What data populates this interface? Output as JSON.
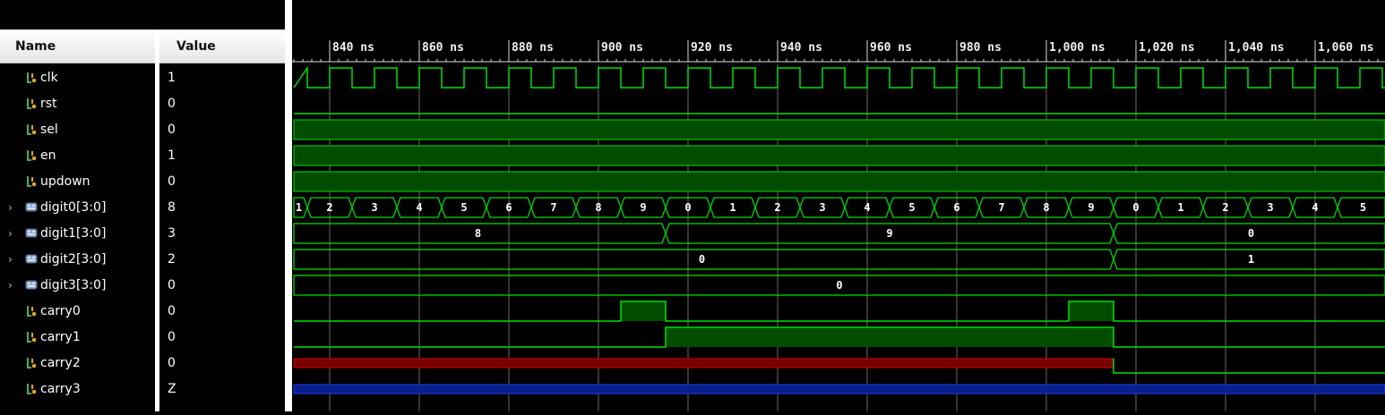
{
  "columns": {
    "name": "Name",
    "value": "Value"
  },
  "signals": [
    {
      "name": "clk",
      "value": "1",
      "type": "bit",
      "expandable": false
    },
    {
      "name": "rst",
      "value": "0",
      "type": "bit",
      "expandable": false
    },
    {
      "name": "sel",
      "value": "0",
      "type": "bit",
      "expandable": false
    },
    {
      "name": "en",
      "value": "1",
      "type": "bit",
      "expandable": false
    },
    {
      "name": "updown",
      "value": "0",
      "type": "bit",
      "expandable": false
    },
    {
      "name": "digit0[3:0]",
      "value": "8",
      "type": "bus",
      "expandable": true
    },
    {
      "name": "digit1[3:0]",
      "value": "3",
      "type": "bus",
      "expandable": true
    },
    {
      "name": "digit2[3:0]",
      "value": "2",
      "type": "bus",
      "expandable": true
    },
    {
      "name": "digit3[3:0]",
      "value": "0",
      "type": "bus",
      "expandable": true
    },
    {
      "name": "carry0",
      "value": "0",
      "type": "bit",
      "expandable": false
    },
    {
      "name": "carry1",
      "value": "0",
      "type": "bit",
      "expandable": false
    },
    {
      "name": "carry2",
      "value": "0",
      "type": "bit",
      "expandable": false
    },
    {
      "name": "carry3",
      "value": "Z",
      "type": "bit",
      "expandable": false
    }
  ],
  "timeline": {
    "ticks": [
      "840 ns",
      "860 ns",
      "880 ns",
      "900 ns",
      "920 ns",
      "940 ns",
      "960 ns",
      "980 ns",
      "1,000 ns",
      "1,020 ns",
      "1,040 ns",
      "1,060 ns"
    ],
    "tick_times_ns": [
      840,
      860,
      880,
      900,
      920,
      940,
      960,
      980,
      1000,
      1020,
      1040,
      1060
    ],
    "view_start_ns": 832,
    "view_end_ns": 1075,
    "clock_period_ns": 10
  },
  "waveforms": {
    "digit0": {
      "first_value": "1",
      "values": [
        "2",
        "3",
        "4",
        "5",
        "6",
        "7",
        "8",
        "9",
        "0",
        "1",
        "2",
        "3",
        "4",
        "5",
        "6",
        "7",
        "8",
        "9",
        "0",
        "1",
        "2",
        "3",
        "4",
        "5"
      ],
      "change_times_ns": [
        835,
        845,
        855,
        865,
        875,
        885,
        895,
        905,
        915,
        925,
        935,
        945,
        955,
        965,
        975,
        985,
        995,
        1005,
        1015,
        1025,
        1035,
        1045,
        1055,
        1065
      ]
    },
    "digit1": {
      "segments": [
        {
          "value": "8",
          "end_ns": 915
        },
        {
          "value": "9",
          "end_ns": 1015
        },
        {
          "value": "0",
          "end_ns": 1075
        }
      ]
    },
    "digit2": {
      "segments": [
        {
          "value": "0",
          "end_ns": 1015
        },
        {
          "value": "1",
          "end_ns": 1075
        }
      ]
    },
    "digit3": {
      "segments": [
        {
          "value": "0",
          "end_ns": 1075
        }
      ]
    },
    "carry0_high_ns": [
      [
        905,
        915
      ],
      [
        1005,
        1015
      ]
    ],
    "carry1_high_ns": [
      [
        915,
        1015
      ]
    ],
    "carry2_x_until_ns": 1015,
    "colors": {
      "wave": "#00e000",
      "fill": "#004d00",
      "unknown": "#d00000",
      "highz": "#1a3cff",
      "grid": "#6a6a6a",
      "cursor_bg": "#000000"
    }
  }
}
